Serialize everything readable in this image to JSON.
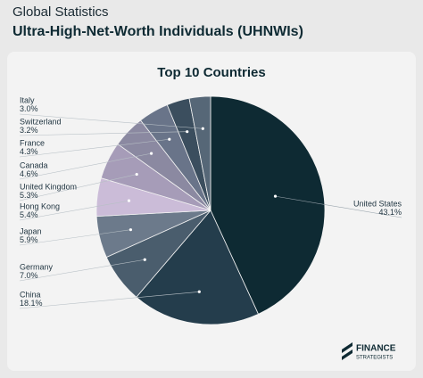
{
  "header": {
    "kicker": "Global Statistics",
    "title": "Ultra-High-Net-Worth Individuals (UHNWIs)"
  },
  "chart_data": {
    "type": "pie",
    "title": "Top 10 Countries",
    "categories": [
      "United States",
      "China",
      "Germany",
      "Japan",
      "Hong Kong",
      "United Kingdom",
      "Canada",
      "France",
      "Switzerland",
      "Italy"
    ],
    "values": [
      43.1,
      18.1,
      7.0,
      5.9,
      5.4,
      5.3,
      4.6,
      4.3,
      3.2,
      3.0
    ],
    "value_labels": [
      "43.1%",
      "18.1%",
      "7.0%",
      "5.9%",
      "5.4%",
      "5.3%",
      "4.6%",
      "4.3%",
      "3.2%",
      "3.0%"
    ],
    "colors": [
      "#0e2a33",
      "#243d4c",
      "#4a5d6d",
      "#6c7a8b",
      "#cbbcd8",
      "#a69cb8",
      "#8b89a1",
      "#697489",
      "#3b4e5e",
      "#566777"
    ]
  },
  "logo": {
    "line1": "FINANCE",
    "line2": "STRATEGISTS"
  }
}
